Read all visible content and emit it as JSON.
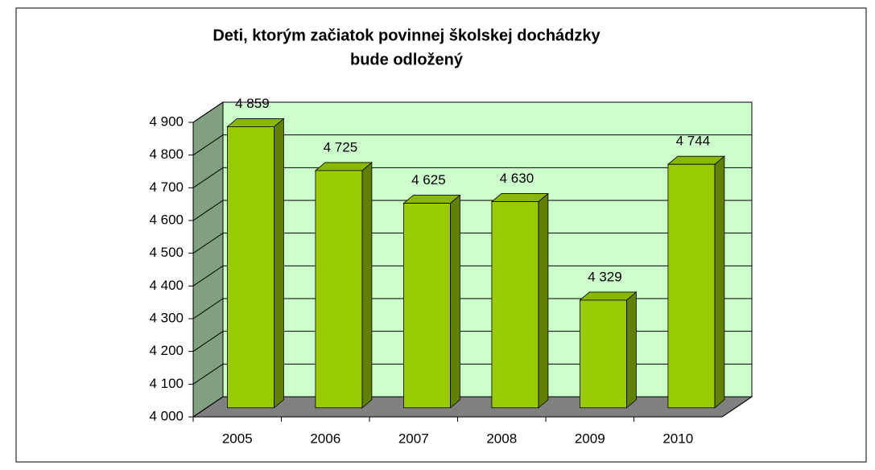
{
  "chart_data": {
    "type": "bar",
    "title": "Deti, ktorým začiatok povinnej školskej dochádzky",
    "subtitle": "bude odložený",
    "categories": [
      "2005",
      "2006",
      "2007",
      "2008",
      "2009",
      "2010"
    ],
    "values": [
      4859,
      4725,
      4625,
      4630,
      4329,
      4744
    ],
    "value_labels": [
      "4 859",
      "4 725",
      "4 625",
      "4 630",
      "4 329",
      "4 744"
    ],
    "color": "#99cc00",
    "ylim": [
      4000,
      4900
    ],
    "yticks": [
      {
        "value": 4000,
        "label": "4 000"
      },
      {
        "value": 4100,
        "label": "4 100"
      },
      {
        "value": 4200,
        "label": "4 200"
      },
      {
        "value": 4300,
        "label": "4 300"
      },
      {
        "value": 4400,
        "label": "4 400"
      },
      {
        "value": 4500,
        "label": "4 500"
      },
      {
        "value": 4600,
        "label": "4 600"
      },
      {
        "value": 4700,
        "label": "4 700"
      },
      {
        "value": 4800,
        "label": "4 800"
      },
      {
        "value": 4900,
        "label": "4 900"
      }
    ],
    "grid": true
  }
}
